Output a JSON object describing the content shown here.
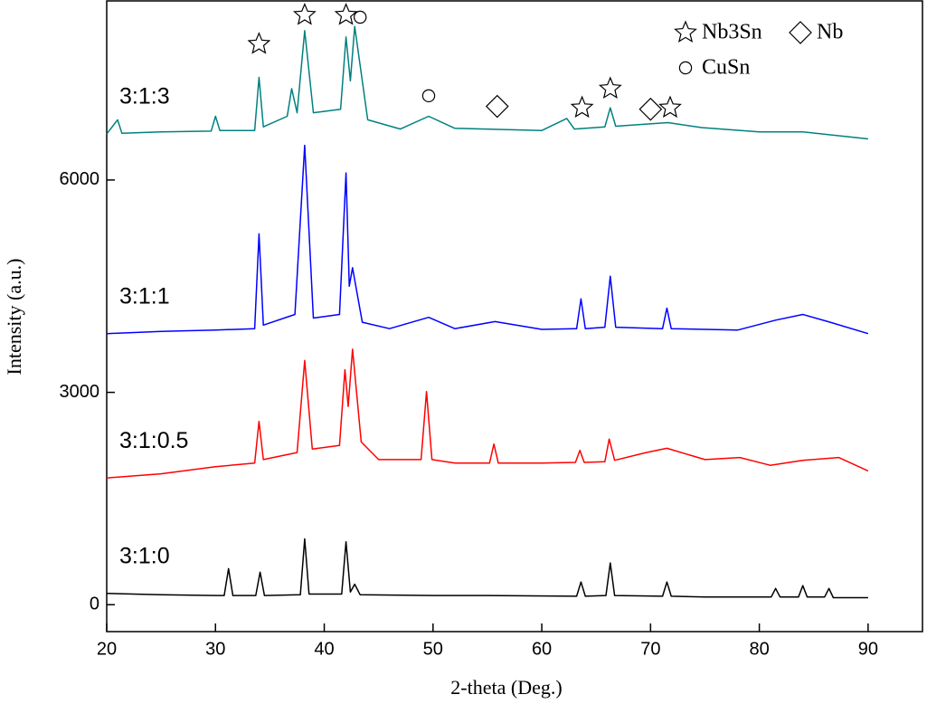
{
  "chart_data": {
    "type": "line",
    "x_label": "2-theta (Deg.)",
    "y_label": "Intensity (a.u.)",
    "xlim": [
      20,
      95
    ],
    "ylim": [
      -380,
      8530
    ],
    "xticks": [
      20,
      30,
      40,
      50,
      60,
      70,
      80,
      90
    ],
    "yticks": [
      0,
      3000,
      6000
    ],
    "grid": false,
    "series": [
      {
        "name": "3:1:0",
        "color": "#000000",
        "x": [
          20,
          25,
          30,
          30.8,
          31.2,
          31.6,
          33.7,
          34.1,
          34.5,
          37.8,
          38.2,
          38.6,
          41.6,
          42,
          42.4,
          42.8,
          43.3,
          50,
          55,
          63.2,
          63.6,
          64,
          65.9,
          66.3,
          66.7,
          71.1,
          71.5,
          71.9,
          75,
          81.1,
          81.5,
          81.9,
          83.6,
          84,
          84.4,
          86,
          86.4,
          86.8,
          90
        ],
        "values": [
          160,
          140,
          130,
          130,
          510,
          130,
          130,
          460,
          130,
          140,
          930,
          150,
          150,
          890,
          180,
          290,
          140,
          130,
          130,
          120,
          320,
          120,
          130,
          590,
          130,
          120,
          320,
          120,
          110,
          110,
          230,
          110,
          110,
          270,
          110,
          110,
          230,
          100,
          100
        ]
      },
      {
        "name": "3:1:0.5",
        "color": "#ff0000",
        "x": [
          20,
          25,
          30,
          33.6,
          34,
          34.4,
          37.5,
          38.2,
          38.9,
          41.4,
          41.9,
          42.2,
          42.6,
          43.4,
          45,
          48.9,
          49.4,
          49.9,
          52,
          55.2,
          55.6,
          56,
          60,
          63.1,
          63.5,
          63.9,
          65.8,
          66.2,
          66.7,
          69.6,
          71.5,
          75,
          78.2,
          81,
          84,
          87.3,
          90
        ],
        "values": [
          1790,
          1850,
          1950,
          2000,
          2590,
          2050,
          2150,
          3450,
          2200,
          2250,
          3320,
          2800,
          3610,
          2300,
          2050,
          2050,
          3010,
          2050,
          2000,
          2000,
          2270,
          2000,
          2000,
          2010,
          2180,
          2010,
          2020,
          2340,
          2040,
          2150,
          2210,
          2050,
          2080,
          1970,
          2040,
          2080,
          1890
        ]
      },
      {
        "name": "3:1:1",
        "color": "#0000ff",
        "x": [
          20,
          25,
          30,
          33.6,
          34,
          34.4,
          37.3,
          38.2,
          39,
          41.4,
          42,
          42.3,
          42.6,
          43.5,
          46,
          49.6,
          52,
          55.7,
          60,
          63.2,
          63.6,
          64,
          65.8,
          66.3,
          66.8,
          71.1,
          71.5,
          71.9,
          78,
          81.5,
          84,
          86.3,
          90
        ],
        "values": [
          3830,
          3860,
          3880,
          3900,
          5240,
          3950,
          4100,
          6490,
          4050,
          4100,
          6100,
          4500,
          4760,
          3990,
          3900,
          4060,
          3900,
          4000,
          3890,
          3900,
          4320,
          3900,
          3920,
          4640,
          3920,
          3900,
          4190,
          3900,
          3880,
          4020,
          4100,
          4000,
          3830
        ]
      },
      {
        "name": "3:1:3",
        "color": "#008080",
        "x": [
          20,
          21,
          21.4,
          25,
          29.6,
          30,
          30.4,
          33.6,
          34,
          34.4,
          36.6,
          37,
          37.5,
          38.2,
          39,
          41.5,
          42,
          42.4,
          42.8,
          44,
          47,
          49.6,
          52,
          60,
          62.3,
          63,
          65.8,
          66.3,
          66.8,
          71.6,
          74.7,
          80,
          84,
          90
        ],
        "values": [
          6650,
          6850,
          6660,
          6680,
          6690,
          6900,
          6700,
          6700,
          7450,
          6750,
          6900,
          7290,
          6950,
          8110,
          6950,
          7000,
          8020,
          7400,
          8170,
          6850,
          6720,
          6900,
          6730,
          6700,
          6870,
          6720,
          6750,
          7020,
          6760,
          6810,
          6740,
          6680,
          6680,
          6580
        ]
      }
    ],
    "phases": [
      {
        "name": "Nb3Sn",
        "symbol": "star"
      },
      {
        "name": "Nb",
        "symbol": "diamond"
      },
      {
        "name": "CuSn",
        "symbol": "circle"
      }
    ],
    "peak_markers": [
      {
        "symbol": "star",
        "x": 34,
        "y": 7920
      },
      {
        "symbol": "star",
        "x": 38.2,
        "y": 8330
      },
      {
        "symbol": "star",
        "x": 42,
        "y": 8330
      },
      {
        "symbol": "circle",
        "x": 43.3,
        "y": 8300
      },
      {
        "symbol": "circle",
        "x": 49.6,
        "y": 7190
      },
      {
        "symbol": "diamond",
        "x": 55.9,
        "y": 7040
      },
      {
        "symbol": "star",
        "x": 63.7,
        "y": 7020
      },
      {
        "symbol": "star",
        "x": 66.3,
        "y": 7290
      },
      {
        "symbol": "diamond",
        "x": 70,
        "y": 7000
      },
      {
        "symbol": "star",
        "x": 71.8,
        "y": 7020
      }
    ]
  }
}
